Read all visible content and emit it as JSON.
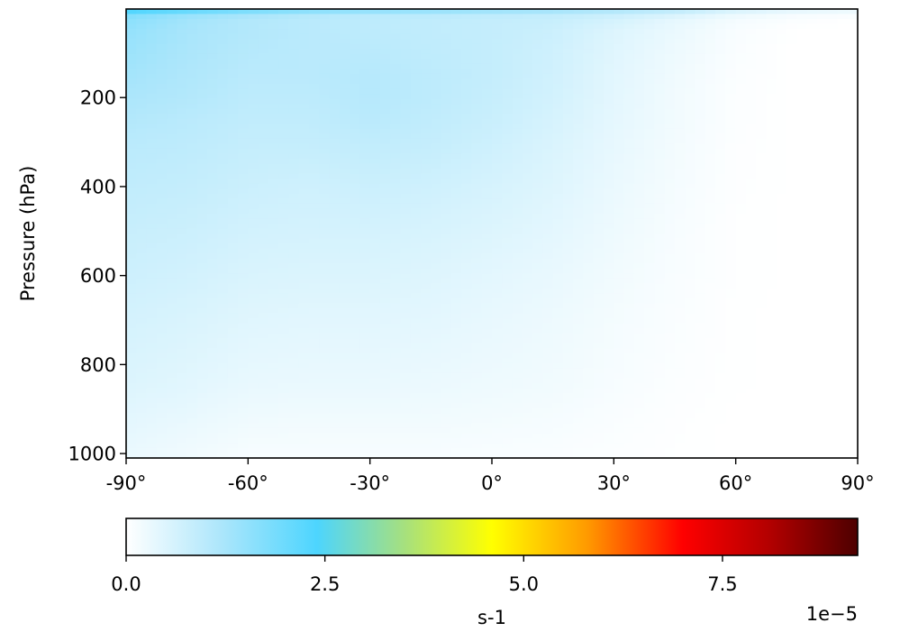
{
  "chart_data": {
    "type": "heatmap",
    "title": "",
    "xlabel": "",
    "ylabel": "Pressure (hPa)",
    "x_ticks": [
      "-90°",
      "-60°",
      "-30°",
      "0°",
      "30°",
      "60°",
      "90°"
    ],
    "x_tick_values": [
      -90,
      -60,
      -30,
      0,
      30,
      60,
      90
    ],
    "xlim": [
      -90,
      90
    ],
    "y_ticks": [
      "200",
      "400",
      "600",
      "800",
      "1000"
    ],
    "y_tick_values": [
      200,
      400,
      600,
      800,
      1000
    ],
    "ylim": [
      1010,
      1
    ],
    "y_inverted": true,
    "grid": false,
    "latitudes": [
      -90,
      -75,
      -60,
      -45,
      -30,
      -15,
      0,
      15,
      30,
      45,
      60,
      75,
      90
    ],
    "pressure_levels": [
      1,
      5,
      10,
      30,
      50,
      100,
      150,
      200,
      250,
      300,
      400,
      500,
      600,
      700,
      850,
      925,
      1000
    ],
    "values_e5": [
      [
        6.0,
        6.0,
        5.5,
        5.0,
        4.8,
        4.5,
        4.2,
        4.0,
        3.5,
        3.0,
        2.2,
        1.8,
        1.2
      ],
      [
        2.6,
        2.3,
        2.0,
        1.8,
        1.7,
        1.6,
        1.5,
        1.4,
        1.2,
        1.0,
        0.6,
        0.4,
        0.3
      ],
      [
        1.8,
        1.5,
        1.3,
        1.1,
        1.0,
        1.0,
        0.95,
        0.9,
        0.8,
        0.6,
        0.3,
        0.15,
        0.1
      ],
      [
        1.6,
        1.3,
        1.1,
        1.0,
        0.95,
        0.9,
        0.85,
        0.8,
        0.6,
        0.35,
        0.15,
        0.05,
        0.0
      ],
      [
        1.5,
        1.25,
        1.1,
        1.0,
        0.95,
        0.9,
        0.85,
        0.75,
        0.5,
        0.3,
        0.1,
        0.0,
        0.0
      ],
      [
        1.4,
        1.2,
        1.05,
        1.0,
        1.0,
        0.92,
        0.85,
        0.7,
        0.45,
        0.25,
        0.08,
        0.0,
        0.0
      ],
      [
        1.3,
        1.15,
        1.0,
        1.0,
        1.05,
        0.95,
        0.85,
        0.68,
        0.42,
        0.22,
        0.06,
        0.0,
        0.0
      ],
      [
        1.2,
        1.1,
        0.95,
        0.95,
        1.05,
        0.95,
        0.82,
        0.65,
        0.4,
        0.2,
        0.05,
        0.0,
        0.0
      ],
      [
        1.1,
        1.0,
        0.9,
        0.9,
        1.0,
        0.9,
        0.78,
        0.6,
        0.38,
        0.2,
        0.05,
        0.0,
        0.0
      ],
      [
        1.0,
        0.95,
        0.85,
        0.85,
        0.9,
        0.85,
        0.72,
        0.55,
        0.35,
        0.18,
        0.04,
        0.0,
        0.0
      ],
      [
        0.9,
        0.85,
        0.75,
        0.7,
        0.75,
        0.7,
        0.6,
        0.48,
        0.3,
        0.15,
        0.03,
        0.0,
        0.0
      ],
      [
        0.8,
        0.75,
        0.65,
        0.62,
        0.62,
        0.58,
        0.5,
        0.4,
        0.25,
        0.12,
        0.02,
        0.0,
        0.0
      ],
      [
        0.72,
        0.65,
        0.55,
        0.52,
        0.52,
        0.48,
        0.4,
        0.32,
        0.2,
        0.1,
        0.02,
        0.0,
        0.0
      ],
      [
        0.62,
        0.55,
        0.45,
        0.42,
        0.42,
        0.4,
        0.33,
        0.26,
        0.16,
        0.08,
        0.01,
        0.0,
        0.0
      ],
      [
        0.5,
        0.42,
        0.32,
        0.3,
        0.3,
        0.28,
        0.24,
        0.2,
        0.12,
        0.05,
        0.01,
        0.0,
        0.0
      ],
      [
        0.4,
        0.32,
        0.22,
        0.2,
        0.2,
        0.2,
        0.17,
        0.14,
        0.08,
        0.03,
        0.0,
        0.0,
        0.0
      ],
      [
        0.3,
        0.22,
        0.12,
        0.12,
        0.12,
        0.12,
        0.1,
        0.08,
        0.05,
        0.02,
        0.0,
        0.0,
        0.0
      ]
    ],
    "colorbar": {
      "label": "s-1",
      "ticks": [
        "0.0",
        "2.5",
        "5.0",
        "7.5"
      ],
      "tick_values": [
        0,
        2.5,
        5.0,
        7.5
      ],
      "min": 0,
      "max": 9.2,
      "offset_label": "1e−5",
      "colormap": [
        {
          "v": 0.0,
          "c": "#ffffff"
        },
        {
          "v": 1.2,
          "c": "#ace6fb"
        },
        {
          "v": 2.4,
          "c": "#4dd5fe"
        },
        {
          "v": 3.5,
          "c": "#a6e07e"
        },
        {
          "v": 4.6,
          "c": "#ffff00"
        },
        {
          "v": 5.8,
          "c": "#ff9a00"
        },
        {
          "v": 7.0,
          "c": "#ff0000"
        },
        {
          "v": 8.1,
          "c": "#b20000"
        },
        {
          "v": 9.2,
          "c": "#4d0000"
        }
      ]
    }
  }
}
